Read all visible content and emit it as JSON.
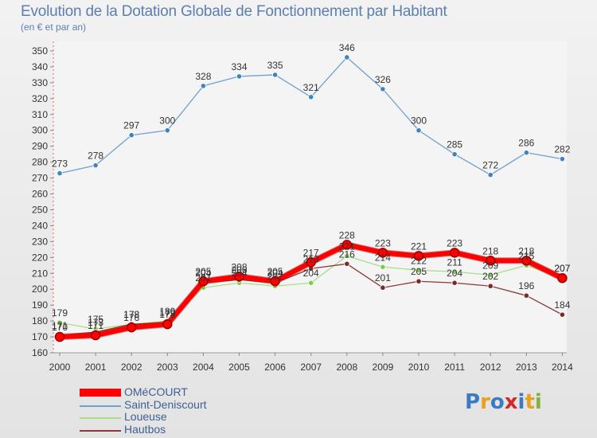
{
  "header": {
    "title": "Evolution de la Dotation Globale de Fonctionnement par Habitant",
    "subtitle": "(en € et par an)"
  },
  "logo": {
    "text": "Proxiti",
    "letters": [
      "P",
      "r",
      "o",
      "x",
      "i",
      "t",
      "i"
    ],
    "colors": [
      "#3a7cc4",
      "#e8a020",
      "#3a7cc4",
      "#d7262b",
      "#3a7cc4",
      "#e8a020",
      "#7cb342"
    ]
  },
  "chart_data": {
    "type": "line",
    "title": "Evolution de la Dotation Globale de Fonctionnement par Habitant",
    "subtitle": "(en € et par an)",
    "xlabel": "",
    "ylabel": "",
    "ylim": [
      160,
      350
    ],
    "yticks": [
      160,
      170,
      180,
      190,
      200,
      210,
      220,
      230,
      240,
      250,
      260,
      270,
      280,
      290,
      300,
      310,
      320,
      330,
      340,
      350
    ],
    "x": [
      "2000",
      "2001",
      "2002",
      "2003",
      "2004",
      "2005",
      "2006",
      "2007",
      "2008",
      "2009",
      "2010",
      "2011",
      "2012",
      "2013",
      "2014"
    ],
    "grid": false,
    "legend_position": "bottom-left",
    "series": [
      {
        "name": "Saint-Deniscourt",
        "color": "#6fa0d0",
        "marker": "#3f84c1",
        "width": 1.3,
        "labels": true,
        "values": [
          273,
          278,
          297,
          300,
          328,
          334,
          335,
          321,
          346,
          326,
          300,
          285,
          272,
          286,
          282
        ]
      },
      {
        "name": "Loueuse",
        "color": "#a8dd8a",
        "marker": "#7fcc47",
        "width": 1.3,
        "labels": true,
        "values": [
          179,
          175,
          178,
          180,
          201,
          204,
          202,
          204,
          221,
          214,
          212,
          211,
          209,
          215,
          207
        ]
      },
      {
        "name": "Hautbos",
        "color": "#8a3a3a",
        "marker": "#7a2a2a",
        "width": 1.3,
        "labels": true,
        "values": [
          171,
          173,
          178,
          179,
          204,
          206,
          204,
          213,
          216,
          201,
          205,
          204,
          202,
          196,
          184
        ]
      },
      {
        "name": "OMéCOURT",
        "color": "#ff0000",
        "marker": "#ff0000",
        "width": 6,
        "labels": true,
        "values": [
          170,
          171,
          176,
          178,
          205,
          208,
          205,
          217,
          228,
          223,
          221,
          223,
          218,
          218,
          207
        ]
      }
    ],
    "legend_order": [
      "OMéCOURT",
      "Saint-Deniscourt",
      "Loueuse",
      "Hautbos"
    ]
  }
}
